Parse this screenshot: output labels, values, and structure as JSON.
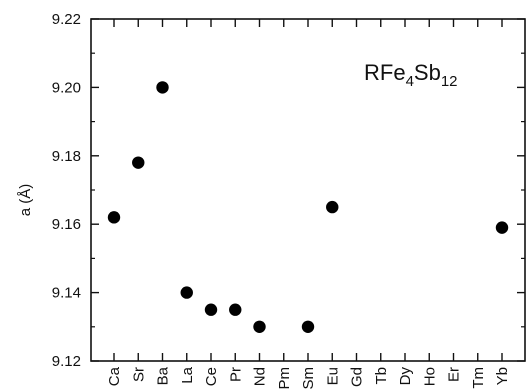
{
  "chart_data": {
    "type": "scatter",
    "title": "",
    "xlabel": "",
    "ylabel": "a (Å)",
    "categories": [
      "Ca",
      "Sr",
      "Ba",
      "La",
      "Ce",
      "Pr",
      "Nd",
      "Pm",
      "Sm",
      "Eu",
      "Gd",
      "Tb",
      "Dy",
      "Ho",
      "Er",
      "Tm",
      "Yb"
    ],
    "series": [
      {
        "points": [
          {
            "x": "Ca",
            "y": 9.162
          },
          {
            "x": "Sr",
            "y": 9.178
          },
          {
            "x": "Ba",
            "y": 9.2
          },
          {
            "x": "La",
            "y": 9.14
          },
          {
            "x": "Ce",
            "y": 9.135
          },
          {
            "x": "Pr",
            "y": 9.135
          },
          {
            "x": "Nd",
            "y": 9.13
          },
          {
            "x": "Sm",
            "y": 9.13
          },
          {
            "x": "Eu",
            "y": 9.165
          },
          {
            "x": "Yb",
            "y": 9.159
          }
        ]
      }
    ],
    "ylim": [
      9.12,
      9.22
    ],
    "yticks": [
      "9.12",
      "9.14",
      "9.16",
      "9.18",
      "9.20",
      "9.22"
    ],
    "annotation": {
      "main": "RFe",
      "sub1": "4",
      "mid": "Sb",
      "sub2": "12"
    },
    "colors": {
      "marker": "#000000",
      "axis": "#111111"
    }
  }
}
